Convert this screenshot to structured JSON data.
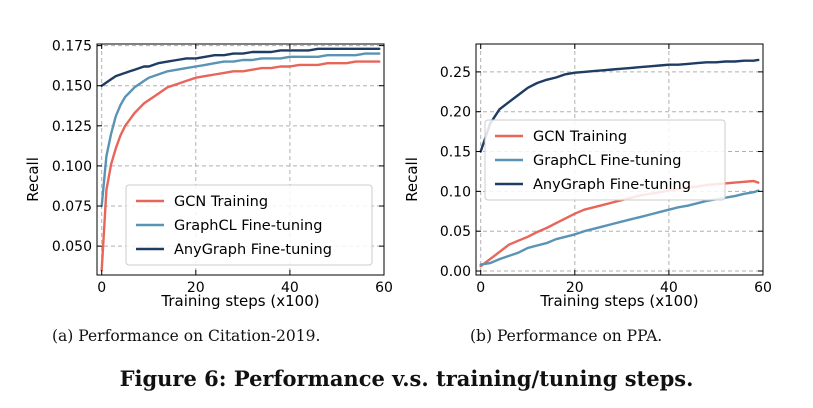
{
  "figure_caption": "Figure 6: Performance v.s. training/tuning steps.",
  "colors": {
    "gcn": "#e8655a",
    "graphcl": "#5a94b5",
    "anygraph": "#1f3c63",
    "grid": "#b0b0b0"
  },
  "chart_data": [
    {
      "type": "line",
      "caption": "(a)  Performance on Citation-2019.",
      "xlabel": "Training steps (x100)",
      "ylabel": "Recall",
      "xlim": [
        -1,
        60
      ],
      "ylim": [
        0.032,
        0.176
      ],
      "xticks": [
        0,
        20,
        40,
        60
      ],
      "xtick_labels": [
        "0",
        "20",
        "40",
        "60"
      ],
      "yticks": [
        0.05,
        0.075,
        0.1,
        0.125,
        0.15,
        0.175
      ],
      "ytick_labels": [
        "0.050",
        "0.075",
        "0.100",
        "0.125",
        "0.150",
        "0.175"
      ],
      "grid": true,
      "legend_position": "lower-right",
      "x": [
        0,
        1,
        2,
        3,
        4,
        5,
        6,
        7,
        8,
        9,
        10,
        12,
        14,
        16,
        18,
        20,
        22,
        24,
        26,
        28,
        30,
        32,
        34,
        36,
        38,
        40,
        42,
        44,
        46,
        48,
        50,
        52,
        54,
        56,
        58,
        59
      ],
      "series": [
        {
          "name": "GCN Training",
          "color_key": "gcn",
          "values": [
            0.035,
            0.085,
            0.101,
            0.111,
            0.119,
            0.125,
            0.129,
            0.133,
            0.136,
            0.139,
            0.141,
            0.145,
            0.149,
            0.151,
            0.153,
            0.155,
            0.156,
            0.157,
            0.158,
            0.159,
            0.159,
            0.16,
            0.161,
            0.161,
            0.162,
            0.162,
            0.163,
            0.163,
            0.163,
            0.164,
            0.164,
            0.164,
            0.165,
            0.165,
            0.165,
            0.165
          ]
        },
        {
          "name": "GraphCL Fine-tuning",
          "color_key": "graphcl",
          "values": [
            0.075,
            0.106,
            0.12,
            0.131,
            0.138,
            0.143,
            0.146,
            0.149,
            0.151,
            0.153,
            0.155,
            0.157,
            0.159,
            0.16,
            0.161,
            0.162,
            0.163,
            0.164,
            0.165,
            0.165,
            0.166,
            0.166,
            0.167,
            0.167,
            0.167,
            0.168,
            0.168,
            0.168,
            0.168,
            0.169,
            0.169,
            0.169,
            0.169,
            0.17,
            0.17,
            0.17
          ]
        },
        {
          "name": "AnyGraph Fine-tuning",
          "color_key": "anygraph",
          "values": [
            0.15,
            0.152,
            0.154,
            0.156,
            0.157,
            0.158,
            0.159,
            0.16,
            0.161,
            0.162,
            0.162,
            0.164,
            0.165,
            0.166,
            0.167,
            0.167,
            0.168,
            0.169,
            0.169,
            0.17,
            0.17,
            0.171,
            0.171,
            0.171,
            0.172,
            0.172,
            0.172,
            0.172,
            0.173,
            0.173,
            0.173,
            0.173,
            0.173,
            0.173,
            0.173,
            0.173
          ]
        }
      ]
    },
    {
      "type": "line",
      "caption": "(b)  Performance on PPA.",
      "xlabel": "Training steps (x100)",
      "ylabel": "Recall",
      "xlim": [
        -1,
        60
      ],
      "ylim": [
        -0.005,
        0.285
      ],
      "xticks": [
        0,
        20,
        40,
        60
      ],
      "xtick_labels": [
        "0",
        "20",
        "40",
        "60"
      ],
      "yticks": [
        0.0,
        0.05,
        0.1,
        0.15,
        0.2,
        0.25
      ],
      "ytick_labels": [
        "0.00",
        "0.05",
        "0.10",
        "0.15",
        "0.20",
        "0.25"
      ],
      "grid": true,
      "legend_position": "center",
      "x": [
        0,
        2,
        4,
        6,
        8,
        10,
        12,
        14,
        16,
        18,
        20,
        22,
        24,
        26,
        28,
        30,
        32,
        34,
        36,
        38,
        40,
        42,
        44,
        46,
        48,
        50,
        52,
        54,
        56,
        58,
        59
      ],
      "series": [
        {
          "name": "GCN Training",
          "color_key": "gcn",
          "values": [
            0.006,
            0.015,
            0.024,
            0.033,
            0.038,
            0.043,
            0.049,
            0.054,
            0.06,
            0.066,
            0.072,
            0.077,
            0.08,
            0.083,
            0.086,
            0.089,
            0.092,
            0.095,
            0.097,
            0.099,
            0.101,
            0.103,
            0.105,
            0.106,
            0.108,
            0.109,
            0.11,
            0.111,
            0.112,
            0.113,
            0.111
          ]
        },
        {
          "name": "GraphCL Fine-tuning",
          "color_key": "graphcl",
          "values": [
            0.008,
            0.01,
            0.015,
            0.019,
            0.023,
            0.029,
            0.032,
            0.035,
            0.04,
            0.043,
            0.046,
            0.05,
            0.053,
            0.056,
            0.059,
            0.062,
            0.065,
            0.068,
            0.071,
            0.074,
            0.077,
            0.08,
            0.082,
            0.085,
            0.088,
            0.09,
            0.092,
            0.094,
            0.097,
            0.099,
            0.101
          ]
        },
        {
          "name": "AnyGraph Fine-tuning",
          "color_key": "anygraph",
          "values": [
            0.15,
            0.185,
            0.203,
            0.212,
            0.221,
            0.23,
            0.236,
            0.24,
            0.243,
            0.247,
            0.249,
            0.25,
            0.251,
            0.252,
            0.253,
            0.254,
            0.255,
            0.256,
            0.257,
            0.258,
            0.259,
            0.259,
            0.26,
            0.261,
            0.262,
            0.262,
            0.263,
            0.263,
            0.264,
            0.264,
            0.265
          ]
        }
      ]
    }
  ]
}
